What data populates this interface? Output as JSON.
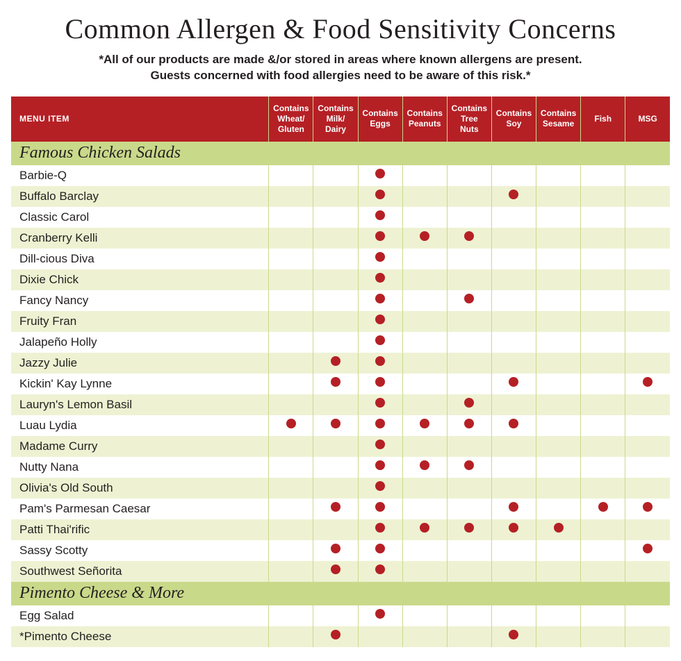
{
  "title": "Common Allergen & Food Sensitivity Concerns",
  "disclaimer_line1": "*All of our products are made &/or stored in areas where known allergens are present.",
  "disclaimer_line2": "Guests concerned with food allergies need to be aware of this risk.*",
  "colors": {
    "header_bg": "#b52025",
    "header_text": "#ffffff",
    "section_bg": "#c9d98a",
    "row_alt_bg": "#eef2d2",
    "row_bg": "#ffffff",
    "dot": "#b52025",
    "grid": "#c9d98a",
    "text": "#231f20"
  },
  "columns": [
    "MENU ITEM",
    "Contains Wheat/ Gluten",
    "Contains Milk/ Dairy",
    "Contains Eggs",
    "Contains Peanuts",
    "Contains Tree Nuts",
    "Contains Soy",
    "Contains Sesame",
    "Fish",
    "MSG"
  ],
  "sections": [
    {
      "name": "Famous Chicken Salads",
      "rows": [
        {
          "name": "Barbie-Q",
          "a": [
            0,
            0,
            1,
            0,
            0,
            0,
            0,
            0,
            0
          ]
        },
        {
          "name": "Buffalo Barclay",
          "a": [
            0,
            0,
            1,
            0,
            0,
            1,
            0,
            0,
            0
          ]
        },
        {
          "name": "Classic Carol",
          "a": [
            0,
            0,
            1,
            0,
            0,
            0,
            0,
            0,
            0
          ]
        },
        {
          "name": "Cranberry Kelli",
          "a": [
            0,
            0,
            1,
            1,
            1,
            0,
            0,
            0,
            0
          ]
        },
        {
          "name": "Dill-cious Diva",
          "a": [
            0,
            0,
            1,
            0,
            0,
            0,
            0,
            0,
            0
          ]
        },
        {
          "name": "Dixie Chick",
          "a": [
            0,
            0,
            1,
            0,
            0,
            0,
            0,
            0,
            0
          ]
        },
        {
          "name": "Fancy Nancy",
          "a": [
            0,
            0,
            1,
            0,
            1,
            0,
            0,
            0,
            0
          ]
        },
        {
          "name": "Fruity Fran",
          "a": [
            0,
            0,
            1,
            0,
            0,
            0,
            0,
            0,
            0
          ]
        },
        {
          "name": "Jalapeño Holly",
          "a": [
            0,
            0,
            1,
            0,
            0,
            0,
            0,
            0,
            0
          ]
        },
        {
          "name": "Jazzy Julie",
          "a": [
            0,
            1,
            1,
            0,
            0,
            0,
            0,
            0,
            0
          ]
        },
        {
          "name": "Kickin' Kay Lynne",
          "a": [
            0,
            1,
            1,
            0,
            0,
            1,
            0,
            0,
            1
          ]
        },
        {
          "name": "Lauryn's Lemon Basil",
          "a": [
            0,
            0,
            1,
            0,
            1,
            0,
            0,
            0,
            0
          ]
        },
        {
          "name": "Luau Lydia",
          "a": [
            1,
            1,
            1,
            1,
            1,
            1,
            0,
            0,
            0
          ]
        },
        {
          "name": "Madame Curry",
          "a": [
            0,
            0,
            1,
            0,
            0,
            0,
            0,
            0,
            0
          ]
        },
        {
          "name": "Nutty Nana",
          "a": [
            0,
            0,
            1,
            1,
            1,
            0,
            0,
            0,
            0
          ]
        },
        {
          "name": "Olivia's Old South",
          "a": [
            0,
            0,
            1,
            0,
            0,
            0,
            0,
            0,
            0
          ]
        },
        {
          "name": "Pam's Parmesan Caesar",
          "a": [
            0,
            1,
            1,
            0,
            0,
            1,
            0,
            1,
            1
          ]
        },
        {
          "name": "Patti Thai'rific",
          "a": [
            0,
            0,
            1,
            1,
            1,
            1,
            1,
            0,
            0
          ]
        },
        {
          "name": "Sassy Scotty",
          "a": [
            0,
            1,
            1,
            0,
            0,
            0,
            0,
            0,
            1
          ]
        },
        {
          "name": "Southwest Señorita",
          "a": [
            0,
            1,
            1,
            0,
            0,
            0,
            0,
            0,
            0
          ]
        }
      ]
    },
    {
      "name": "Pimento Cheese & More",
      "rows": [
        {
          "name": "Egg Salad",
          "a": [
            0,
            0,
            1,
            0,
            0,
            0,
            0,
            0,
            0
          ]
        },
        {
          "name": "*Pimento Cheese",
          "a": [
            0,
            1,
            0,
            0,
            0,
            1,
            0,
            0,
            0
          ]
        }
      ]
    }
  ]
}
